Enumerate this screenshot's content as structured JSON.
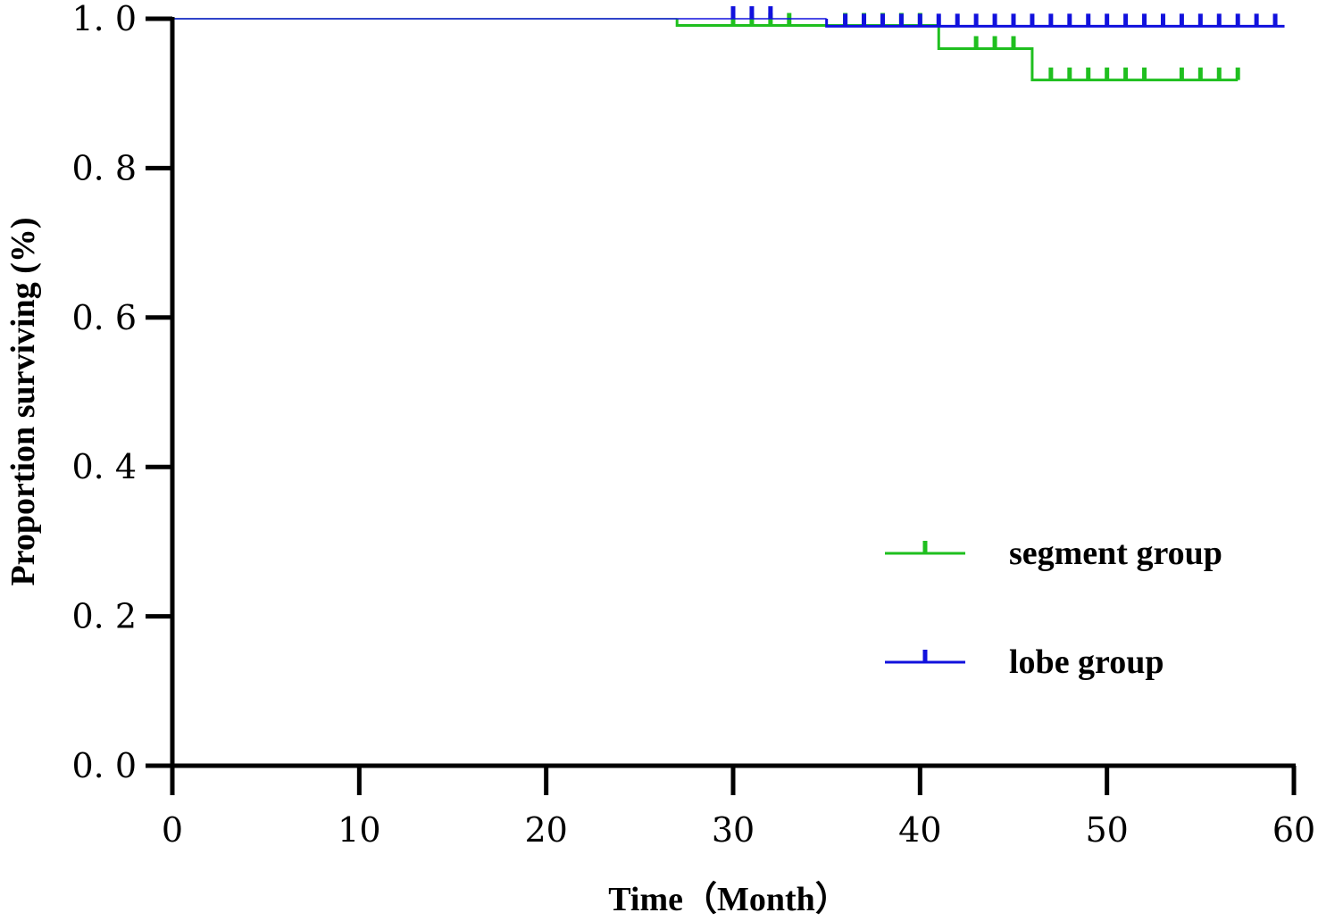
{
  "chart_data": {
    "type": "line",
    "title": "",
    "xlabel": "Time（Month）",
    "ylabel": "Proportion surviving (%)",
    "xlim": [
      0,
      60
    ],
    "ylim": [
      0,
      1.0
    ],
    "xticks": [
      0,
      10,
      20,
      30,
      40,
      50,
      60
    ],
    "xtick_labels": [
      "0",
      "10",
      "20",
      "30",
      "40",
      "50",
      "60"
    ],
    "yticks": [
      0,
      0.2,
      0.4,
      0.6,
      0.8,
      1.0
    ],
    "ytick_labels": [
      "0. 0",
      "0. 2",
      "0. 4",
      "0. 6",
      "0. 8",
      "1. 0"
    ],
    "grid": false,
    "legend_position": "bottom-right",
    "series": [
      {
        "name": "segment group",
        "color": "#1fbf1f",
        "steps": [
          [
            0,
            1.0
          ],
          [
            27,
            0.991
          ],
          [
            41,
            0.96
          ],
          [
            46,
            0.918
          ],
          [
            57,
            0.918
          ]
        ],
        "censors": [
          30,
          31,
          32,
          33,
          36,
          37,
          38,
          39,
          40,
          43,
          44,
          45,
          47,
          48,
          49,
          50,
          51,
          52,
          54,
          55,
          56,
          57
        ]
      },
      {
        "name": "lobe group",
        "color": "#1111dd",
        "steps": [
          [
            0,
            1.0
          ],
          [
            35,
            0.99
          ],
          [
            59.5,
            0.99
          ]
        ],
        "censors": [
          30,
          31,
          32,
          36,
          37,
          38,
          39,
          40,
          41,
          42,
          43,
          44,
          45,
          46,
          47,
          48,
          49,
          50,
          51,
          52,
          53,
          54,
          55,
          56,
          57,
          58,
          59
        ]
      }
    ]
  }
}
